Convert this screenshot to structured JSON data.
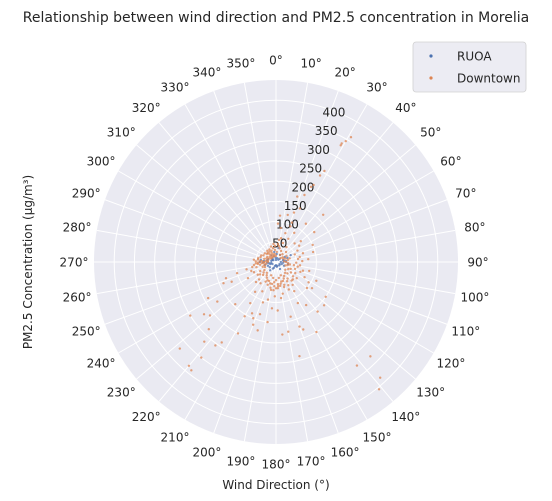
{
  "chart_data": {
    "type": "scatter",
    "projection": "polar",
    "title": "Relationship between wind direction and PM2.5 concentration in Morelia",
    "xlabel": "Wind Direction (°)",
    "ylabel": "PM2.5 Concentration (µg/m³)",
    "theta_zero": "north",
    "theta_direction": "clockwise",
    "theta_ticks": [
      0,
      10,
      20,
      30,
      40,
      50,
      60,
      70,
      80,
      90,
      100,
      110,
      120,
      130,
      140,
      150,
      160,
      170,
      180,
      190,
      200,
      210,
      220,
      230,
      240,
      250,
      260,
      270,
      280,
      290,
      300,
      310,
      320,
      330,
      340,
      350
    ],
    "theta_tick_labels": [
      "0°",
      "10°",
      "20°",
      "30°",
      "40°",
      "50°",
      "60°",
      "70°",
      "80°",
      "90°",
      "100°",
      "110°",
      "120°",
      "130°",
      "140°",
      "150°",
      "160°",
      "170°",
      "180°",
      "190°",
      "200°",
      "210°",
      "220°",
      "230°",
      "240°",
      "250°",
      "260°",
      "270°",
      "280°",
      "290°",
      "300°",
      "310°",
      "320°",
      "330°",
      "340°",
      "350°"
    ],
    "r_ticks": [
      50,
      100,
      150,
      200,
      250,
      300,
      350,
      400
    ],
    "r_tick_labels": [
      "50",
      "100",
      "150",
      "200",
      "250",
      "300",
      "350",
      "400"
    ],
    "r_lim": [
      0,
      450
    ],
    "grid": true,
    "legend_position": "top-right",
    "colors": {
      "background": "#eaeaf2",
      "grid": "#ffffff"
    },
    "series": [
      {
        "name": "RUOA",
        "color": "#4c72b0",
        "points": [
          [
            0,
            5
          ],
          [
            20,
            10
          ],
          [
            45,
            8
          ],
          [
            60,
            25
          ],
          [
            70,
            30
          ],
          [
            80,
            20
          ],
          [
            95,
            18
          ],
          [
            110,
            15
          ],
          [
            135,
            12
          ],
          [
            160,
            10
          ],
          [
            180,
            8
          ],
          [
            200,
            15
          ],
          [
            230,
            20
          ],
          [
            250,
            15
          ],
          [
            262,
            18
          ],
          [
            270,
            40
          ],
          [
            275,
            30
          ],
          [
            280,
            22
          ],
          [
            290,
            20
          ],
          [
            300,
            10
          ],
          [
            315,
            12
          ],
          [
            340,
            15
          ],
          [
            355,
            10
          ],
          [
            10,
            35
          ],
          [
            30,
            20
          ],
          [
            50,
            12
          ],
          [
            85,
            25
          ],
          [
            100,
            30
          ],
          [
            120,
            10
          ],
          [
            150,
            20
          ],
          [
            170,
            12
          ],
          [
            195,
            10
          ],
          [
            215,
            25
          ],
          [
            240,
            10
          ],
          [
            255,
            28
          ],
          [
            265,
            22
          ],
          [
            285,
            12
          ],
          [
            305,
            8
          ],
          [
            325,
            20
          ],
          [
            350,
            25
          ],
          [
            75,
            18
          ],
          [
            90,
            12
          ],
          [
            260,
            12
          ],
          [
            268,
            32
          ],
          [
            278,
            38
          ],
          [
            5,
            20
          ],
          [
            65,
            40
          ],
          [
            115,
            22
          ],
          [
            205,
            18
          ],
          [
            245,
            22
          ]
        ]
      },
      {
        "name": "Downtown",
        "color": "#dd8452",
        "points": [
          [
            0,
            15
          ],
          [
            5,
            25
          ],
          [
            10,
            40
          ],
          [
            15,
            35
          ],
          [
            20,
            50
          ],
          [
            25,
            30
          ],
          [
            30,
            20
          ],
          [
            35,
            45
          ],
          [
            40,
            25
          ],
          [
            45,
            35
          ],
          [
            50,
            15
          ],
          [
            55,
            20
          ],
          [
            60,
            30
          ],
          [
            65,
            20
          ],
          [
            70,
            25
          ],
          [
            75,
            35
          ],
          [
            80,
            30
          ],
          [
            85,
            20
          ],
          [
            90,
            25
          ],
          [
            95,
            30
          ],
          [
            100,
            35
          ],
          [
            105,
            30
          ],
          [
            110,
            25
          ],
          [
            115,
            40
          ],
          [
            120,
            35
          ],
          [
            125,
            45
          ],
          [
            130,
            30
          ],
          [
            135,
            40
          ],
          [
            140,
            35
          ],
          [
            145,
            50
          ],
          [
            150,
            40
          ],
          [
            155,
            45
          ],
          [
            160,
            35
          ],
          [
            165,
            50
          ],
          [
            170,
            40
          ],
          [
            175,
            55
          ],
          [
            180,
            45
          ],
          [
            185,
            50
          ],
          [
            190,
            40
          ],
          [
            195,
            55
          ],
          [
            200,
            35
          ],
          [
            205,
            50
          ],
          [
            210,
            45
          ],
          [
            215,
            40
          ],
          [
            220,
            35
          ],
          [
            225,
            45
          ],
          [
            230,
            40
          ],
          [
            235,
            35
          ],
          [
            240,
            45
          ],
          [
            245,
            30
          ],
          [
            250,
            35
          ],
          [
            255,
            30
          ],
          [
            260,
            25
          ],
          [
            265,
            35
          ],
          [
            270,
            30
          ],
          [
            275,
            25
          ],
          [
            280,
            20
          ],
          [
            285,
            30
          ],
          [
            290,
            25
          ],
          [
            295,
            20
          ],
          [
            300,
            25
          ],
          [
            305,
            15
          ],
          [
            310,
            20
          ],
          [
            315,
            15
          ],
          [
            320,
            25
          ],
          [
            325,
            20
          ],
          [
            330,
            15
          ],
          [
            335,
            25
          ],
          [
            340,
            20
          ],
          [
            345,
            15
          ],
          [
            350,
            20
          ],
          [
            355,
            30
          ],
          [
            12,
            60
          ],
          [
            18,
            75
          ],
          [
            22,
            95
          ],
          [
            8,
            55
          ],
          [
            28,
            65
          ],
          [
            32,
            85
          ],
          [
            22,
            105
          ],
          [
            20,
            130
          ],
          [
            24,
            145
          ],
          [
            25,
            205
          ],
          [
            26,
            212
          ],
          [
            27,
            240
          ],
          [
            28,
            255
          ],
          [
            29,
            330
          ],
          [
            29,
            335
          ],
          [
            30,
            345
          ],
          [
            31,
            360
          ],
          [
            18,
            170
          ],
          [
            23,
            180
          ],
          [
            14,
            120
          ],
          [
            3,
            95
          ],
          [
            5,
            115
          ],
          [
            8,
            85
          ],
          [
            38,
            120
          ],
          [
            45,
            65
          ],
          [
            50,
            80
          ],
          [
            55,
            70
          ],
          [
            62,
            60
          ],
          [
            68,
            50
          ],
          [
            72,
            70
          ],
          [
            78,
            60
          ],
          [
            82,
            55
          ],
          [
            88,
            65
          ],
          [
            92,
            50
          ],
          [
            98,
            60
          ],
          [
            102,
            55
          ],
          [
            108,
            70
          ],
          [
            112,
            65
          ],
          [
            118,
            80
          ],
          [
            122,
            95
          ],
          [
            126,
            110
          ],
          [
            130,
            100
          ],
          [
            132,
            160
          ],
          [
            135,
            330
          ],
          [
            138,
            385
          ],
          [
            141,
            405
          ],
          [
            142,
            325
          ],
          [
            145,
            130
          ],
          [
            148,
            85
          ],
          [
            152,
            115
          ],
          [
            155,
            75
          ],
          [
            158,
            180
          ],
          [
            160,
            170
          ],
          [
            162,
            65
          ],
          [
            165,
            140
          ],
          [
            166,
            240
          ],
          [
            168,
            80
          ],
          [
            170,
            175
          ],
          [
            172,
            90
          ],
          [
            175,
            180
          ],
          [
            178,
            120
          ],
          [
            182,
            85
          ],
          [
            185,
            115
          ],
          [
            188,
            150
          ],
          [
            190,
            70
          ],
          [
            192,
            95
          ],
          [
            195,
            175
          ],
          [
            197,
            135
          ],
          [
            198,
            105
          ],
          [
            200,
            165
          ],
          [
            202,
            150
          ],
          [
            205,
            140
          ],
          [
            208,
            200
          ],
          [
            210,
            155
          ],
          [
            212,
            120
          ],
          [
            214,
            240
          ],
          [
            216,
            255
          ],
          [
            218,
            300
          ],
          [
            218,
            340
          ],
          [
            220,
            335
          ],
          [
            222,
            265
          ],
          [
            225,
            235
          ],
          [
            224,
            145
          ],
          [
            228,
            320
          ],
          [
            231,
            210
          ],
          [
            234,
            220
          ],
          [
            236,
            175
          ],
          [
            238,
            250
          ],
          [
            240,
            80
          ],
          [
            242,
            190
          ],
          [
            246,
            120
          ],
          [
            248,
            140
          ],
          [
            252,
            130
          ],
          [
            254,
            100
          ],
          [
            256,
            75
          ],
          [
            258,
            60
          ],
          [
            262,
            55
          ],
          [
            266,
            50
          ],
          [
            268,
            45
          ],
          [
            272,
            50
          ],
          [
            276,
            55
          ],
          [
            278,
            45
          ],
          [
            282,
            45
          ],
          [
            288,
            40
          ],
          [
            294,
            40
          ],
          [
            298,
            35
          ],
          [
            308,
            35
          ],
          [
            312,
            30
          ],
          [
            318,
            30
          ],
          [
            322,
            35
          ],
          [
            328,
            30
          ],
          [
            332,
            35
          ],
          [
            338,
            30
          ],
          [
            342,
            40
          ],
          [
            348,
            35
          ],
          [
            352,
            45
          ],
          [
            356,
            40
          ],
          [
            6,
            45
          ],
          [
            45,
            165
          ],
          [
            52,
            120
          ],
          [
            65,
            100
          ],
          [
            75,
            95
          ],
          [
            85,
            80
          ],
          [
            105,
            85
          ],
          [
            115,
            110
          ],
          [
            125,
            150
          ],
          [
            140,
            160
          ],
          [
            150,
            200
          ],
          [
            175,
            60
          ],
          [
            185,
            70
          ],
          [
            205,
            80
          ],
          [
            215,
            90
          ],
          [
            225,
            70
          ],
          [
            235,
            55
          ],
          [
            245,
            60
          ],
          [
            250,
            65
          ],
          [
            255,
            50
          ],
          [
            260,
            40
          ],
          [
            264,
            45
          ],
          [
            266,
            30
          ],
          [
            270,
            20
          ],
          [
            272,
            40
          ],
          [
            274,
            35
          ],
          [
            120,
            55
          ],
          [
            128,
            65
          ],
          [
            136,
            60
          ],
          [
            144,
            70
          ],
          [
            152,
            65
          ],
          [
            160,
            60
          ],
          [
            168,
            55
          ],
          [
            176,
            65
          ],
          [
            184,
            60
          ],
          [
            192,
            65
          ],
          [
            200,
            60
          ],
          [
            208,
            55
          ],
          [
            216,
            65
          ],
          [
            224,
            60
          ],
          [
            232,
            50
          ],
          [
            100,
            45
          ],
          [
            110,
            50
          ],
          [
            130,
            55
          ],
          [
            140,
            60
          ],
          [
            150,
            55
          ],
          [
            160,
            50
          ],
          [
            170,
            60
          ],
          [
            180,
            65
          ],
          [
            190,
            55
          ],
          [
            200,
            50
          ]
        ]
      }
    ]
  }
}
